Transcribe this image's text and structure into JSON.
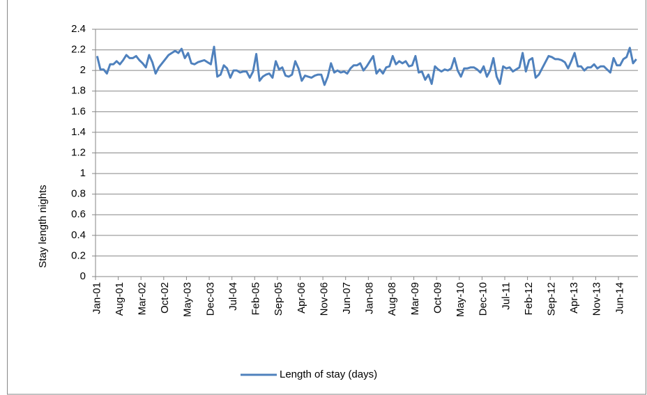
{
  "chart_data": {
    "type": "line",
    "y_label": "Stay length nights",
    "categories": [
      "Jan-01",
      null,
      null,
      null,
      null,
      null,
      null,
      "Aug-01",
      null,
      null,
      null,
      null,
      null,
      null,
      "Mar-02",
      null,
      null,
      null,
      null,
      null,
      null,
      "Oct-02",
      null,
      null,
      null,
      null,
      null,
      null,
      "May-03",
      null,
      null,
      null,
      null,
      null,
      null,
      "Dec-03",
      null,
      null,
      null,
      null,
      null,
      null,
      "Jul-04",
      null,
      null,
      null,
      null,
      null,
      null,
      "Feb-05",
      null,
      null,
      null,
      null,
      null,
      null,
      "Sep-05",
      null,
      null,
      null,
      null,
      null,
      null,
      "Apr-06",
      null,
      null,
      null,
      null,
      null,
      null,
      "Nov-06",
      null,
      null,
      null,
      null,
      null,
      null,
      "Jun-07",
      null,
      null,
      null,
      null,
      null,
      null,
      "Jan-08",
      null,
      null,
      null,
      null,
      null,
      null,
      "Aug-08",
      null,
      null,
      null,
      null,
      null,
      null,
      "Mar-09",
      null,
      null,
      null,
      null,
      null,
      null,
      "Oct-09",
      null,
      null,
      null,
      null,
      null,
      null,
      "May-10",
      null,
      null,
      null,
      null,
      null,
      null,
      "Dec-10",
      null,
      null,
      null,
      null,
      null,
      null,
      "Jul-11",
      null,
      null,
      null,
      null,
      null,
      null,
      "Feb-12",
      null,
      null,
      null,
      null,
      null,
      null,
      "Sep-12",
      null,
      null,
      null,
      null,
      null,
      null,
      "Apr-13",
      null,
      null,
      null,
      null,
      null,
      null,
      "Nov-13",
      null,
      null,
      null,
      null,
      null,
      null,
      "Jun-14",
      null,
      null,
      null,
      null,
      null
    ],
    "series": [
      {
        "name": "Length of stay (days)",
        "color": "#4f81bd",
        "values": [
          2.14,
          2.01,
          2.01,
          1.97,
          2.06,
          2.06,
          2.09,
          2.06,
          2.1,
          2.15,
          2.12,
          2.12,
          2.14,
          2.1,
          2.07,
          2.03,
          2.15,
          2.08,
          1.97,
          2.03,
          2.07,
          2.11,
          2.15,
          2.17,
          2.19,
          2.17,
          2.21,
          2.12,
          2.17,
          2.07,
          2.06,
          2.08,
          2.09,
          2.1,
          2.08,
          2.06,
          2.23,
          1.94,
          1.96,
          2.05,
          2.02,
          1.93,
          2.0,
          2.0,
          1.98,
          1.99,
          1.99,
          1.93,
          1.99,
          2.16,
          1.9,
          1.94,
          1.96,
          1.97,
          1.93,
          2.09,
          2.01,
          2.03,
          1.95,
          1.94,
          1.96,
          2.09,
          2.02,
          1.9,
          1.95,
          1.94,
          1.93,
          1.95,
          1.96,
          1.96,
          1.86,
          1.94,
          2.07,
          1.98,
          2.0,
          1.98,
          1.99,
          1.97,
          2.02,
          2.05,
          2.05,
          2.07,
          2.0,
          2.04,
          2.09,
          2.14,
          1.97,
          2.01,
          1.97,
          2.03,
          2.04,
          2.14,
          2.06,
          2.09,
          2.07,
          2.09,
          2.04,
          2.05,
          2.14,
          1.98,
          1.99,
          1.91,
          1.96,
          1.87,
          2.04,
          2.01,
          1.99,
          2.01,
          2.0,
          2.02,
          2.12,
          2.0,
          1.94,
          2.02,
          2.02,
          2.03,
          2.03,
          2.01,
          1.98,
          2.04,
          1.94,
          2.0,
          2.12,
          1.94,
          1.87,
          2.04,
          2.02,
          2.03,
          1.99,
          2.01,
          2.03,
          2.17,
          1.99,
          2.1,
          2.12,
          1.93,
          1.96,
          2.02,
          2.08,
          2.14,
          2.13,
          2.11,
          2.11,
          2.1,
          2.08,
          2.02,
          2.09,
          2.17,
          2.04,
          2.04,
          2.0,
          2.03,
          2.03,
          2.06,
          2.02,
          2.04,
          2.04,
          2.01,
          1.98,
          2.12,
          2.05,
          2.05,
          2.11,
          2.13,
          2.22,
          2.07,
          2.11
        ]
      }
    ],
    "ylim": [
      0,
      2.4
    ],
    "yticks": [
      0,
      0.2,
      0.4,
      0.6,
      0.8,
      1,
      1.2,
      1.4,
      1.6,
      1.8,
      2,
      2.2,
      2.4
    ],
    "grid": true,
    "legend": "bottom"
  }
}
